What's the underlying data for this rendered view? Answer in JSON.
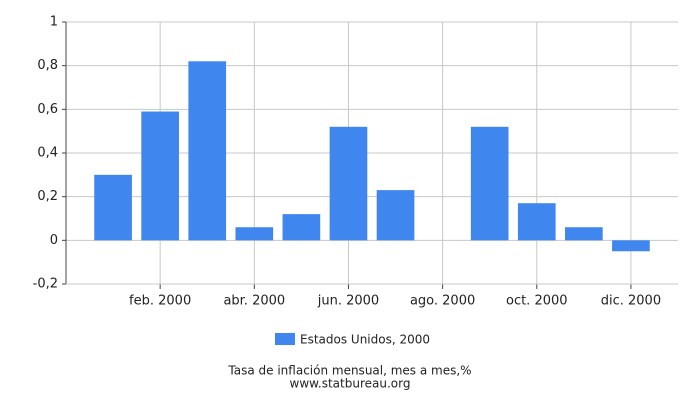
{
  "chart_data": {
    "type": "bar",
    "categories": [
      null,
      "feb. 2000",
      null,
      "abr. 2000",
      null,
      "jun. 2000",
      null,
      "ago. 2000",
      null,
      "oct. 2000",
      null,
      "dic. 2000"
    ],
    "series": [
      {
        "name": "Estados Unidos, 2000",
        "color": "#3f86ee",
        "values": [
          0.3,
          0.59,
          0.82,
          0.06,
          0.12,
          0.52,
          0.23,
          0,
          0.52,
          0.17,
          0.06,
          -0.05
        ]
      }
    ],
    "ylim": [
      -0.2,
      1
    ],
    "yticks": [
      {
        "value": -0.2,
        "label": "-0,2"
      },
      0,
      {
        "value": 0.2,
        "label": "0,2"
      },
      {
        "value": 0.4,
        "label": "0,4"
      },
      {
        "value": 0.6,
        "label": "0,6"
      },
      {
        "value": 0.8,
        "label": "0,8"
      },
      1
    ],
    "grid": true,
    "caption": "Tasa de inflación mensual, mes a mes,%",
    "source": "www.statbureau.org"
  }
}
